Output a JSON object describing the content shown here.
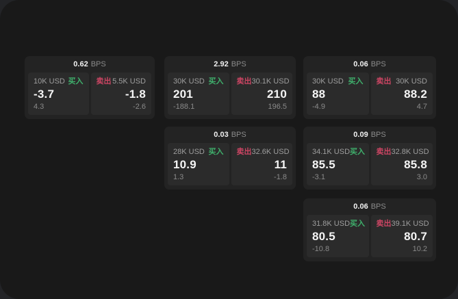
{
  "board": {
    "unit_label": "BPS",
    "buy_label": "买入",
    "sell_label": "卖出",
    "colors": {
      "buy": "#3fb06c",
      "sell": "#cb4563",
      "card_bg": "#232323",
      "tile_bg": "#2b2b2b"
    }
  },
  "cards": [
    {
      "bps": "0.62",
      "row": 1,
      "col": 1,
      "buy": {
        "notional": "10K USD",
        "price": "-3.7",
        "change": "4.3"
      },
      "sell": {
        "notional": "5.5K USD",
        "price": "-1.8",
        "change": "-2.6"
      }
    },
    {
      "bps": "2.92",
      "row": 1,
      "col": 2,
      "buy": {
        "notional": "30K USD",
        "price": "201",
        "change": "-188.1"
      },
      "sell": {
        "notional": "30.1K USD",
        "price": "210",
        "change": "196.5"
      }
    },
    {
      "bps": "0.06",
      "row": 1,
      "col": 3,
      "buy": {
        "notional": "30K USD",
        "price": "88",
        "change": "-4.9"
      },
      "sell": {
        "notional": "30K USD",
        "price": "88.2",
        "change": "4.7"
      }
    },
    {
      "bps": "0.03",
      "row": 2,
      "col": 2,
      "buy": {
        "notional": "28K USD",
        "price": "10.9",
        "change": "1.3"
      },
      "sell": {
        "notional": "32.6K USD",
        "price": "11",
        "change": "-1.8"
      }
    },
    {
      "bps": "0.09",
      "row": 2,
      "col": 3,
      "buy": {
        "notional": "34.1K USD",
        "price": "85.5",
        "change": "-3.1"
      },
      "sell": {
        "notional": "32.8K USD",
        "price": "85.8",
        "change": "3.0"
      }
    },
    {
      "bps": "0.06",
      "row": 3,
      "col": 3,
      "buy": {
        "notional": "31.8K USD",
        "price": "80.5",
        "change": "-10.8"
      },
      "sell": {
        "notional": "39.1K USD",
        "price": "80.7",
        "change": "10.2"
      }
    }
  ]
}
